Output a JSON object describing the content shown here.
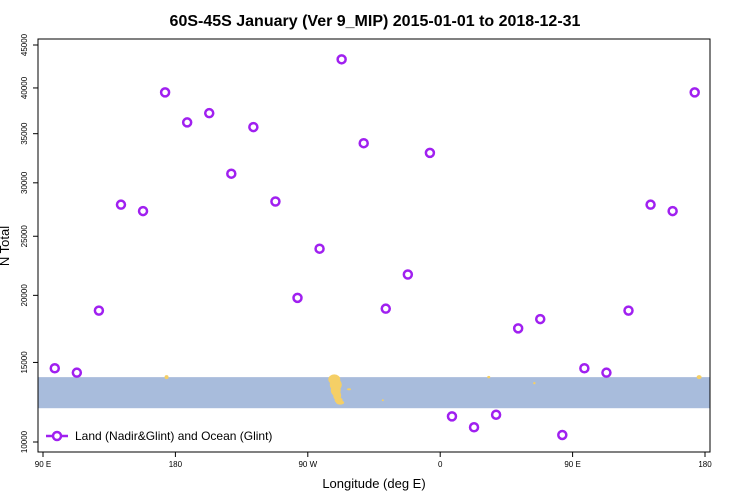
{
  "chart_data": {
    "type": "scatter",
    "title": "60S-45S January (Ver 9_MIP)   2015-01-01 to 2018-12-31",
    "xlabel": "Longitude (deg E)",
    "ylabel": "N Total",
    "x_ticks": [
      "90 E",
      "180",
      "90 W",
      "0",
      "90 E",
      "180"
    ],
    "x_tick_values": [
      90,
      180,
      270,
      360,
      450,
      540
    ],
    "y_ticks": [
      "10000",
      "15000",
      "20000",
      "25000",
      "30000",
      "35000",
      "40000",
      "45000"
    ],
    "y_tick_values": [
      10000,
      15000,
      20000,
      25000,
      30000,
      35000,
      40000,
      45000
    ],
    "xlim": [
      90,
      540
    ],
    "ylim": [
      10000,
      45000
    ],
    "y_scale": "sqrt",
    "grid": false,
    "legend_position": "bottom-left",
    "series": [
      {
        "name": "Land (Nadir&Glint) and Ocean (Glint)",
        "color": "#a020f0",
        "points": [
          [
            98,
            14600
          ],
          [
            113,
            14300
          ],
          [
            128,
            18800
          ],
          [
            143,
            27900
          ],
          [
            158,
            27300
          ],
          [
            173,
            39500
          ],
          [
            188,
            36200
          ],
          [
            203,
            37200
          ],
          [
            218,
            30900
          ],
          [
            233,
            35700
          ],
          [
            248,
            28200
          ],
          [
            263,
            19800
          ],
          [
            278,
            23900
          ],
          [
            293,
            43300
          ],
          [
            308,
            34000
          ],
          [
            323,
            18950
          ],
          [
            338,
            21700
          ],
          [
            353,
            33000
          ],
          [
            368,
            11500
          ],
          [
            383,
            10850
          ],
          [
            398,
            11600
          ],
          [
            413,
            17450
          ],
          [
            428,
            18150
          ],
          [
            443,
            10400
          ],
          [
            458,
            14600
          ],
          [
            473,
            14300
          ],
          [
            488,
            18800
          ],
          [
            503,
            27900
          ],
          [
            518,
            27300
          ],
          [
            533,
            39500
          ]
        ]
      }
    ],
    "band": {
      "ymin": 12000,
      "ymax": 14000,
      "color": "#a8bcdc"
    },
    "land_color": "#f5cf66"
  }
}
